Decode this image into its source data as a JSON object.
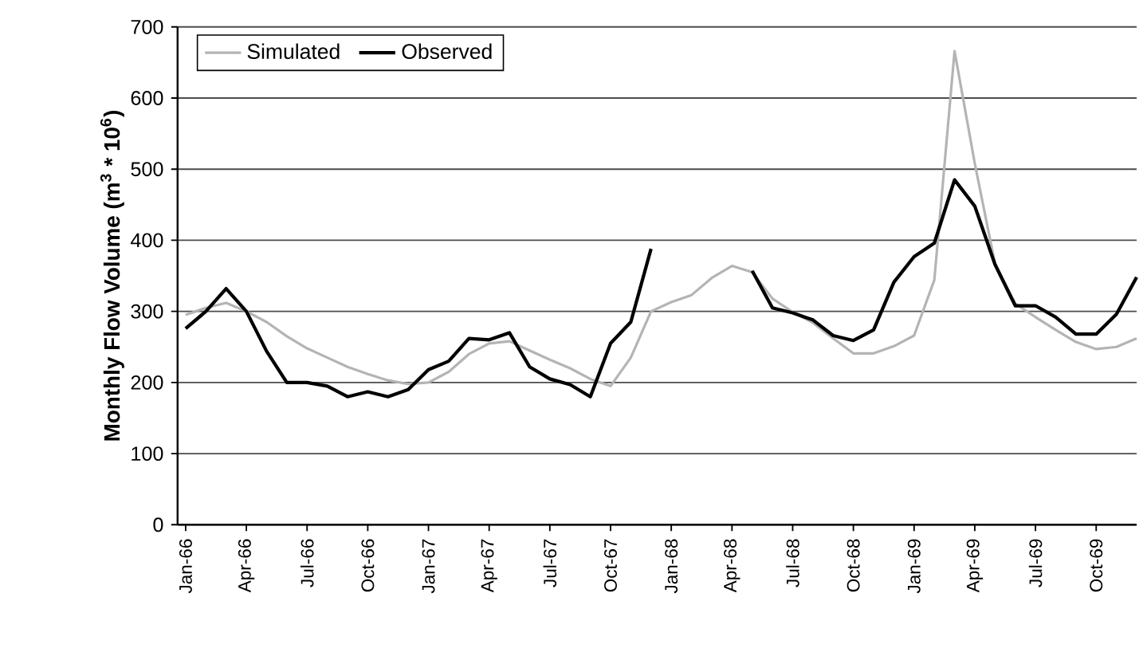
{
  "chart_data": {
    "type": "line",
    "ylabel": "Monthly Flow Volume (m$^{3}$ * 10$^{6}$)",
    "categories": [
      "Jan-66",
      null,
      null,
      "Apr-66",
      null,
      null,
      "Jul-66",
      null,
      null,
      "Oct-66",
      null,
      null,
      "Jan-67",
      null,
      null,
      "Apr-67",
      null,
      null,
      "Jul-67",
      null,
      null,
      "Oct-67",
      null,
      null,
      "Jan-68",
      null,
      null,
      "Apr-68",
      null,
      null,
      "Jul-68",
      null,
      null,
      "Oct-68",
      null,
      null,
      "Jan-69",
      null,
      null,
      "Apr-69",
      null,
      null,
      "Jul-69",
      null,
      null,
      "Oct-69",
      null,
      null
    ],
    "series": [
      {
        "name": "Simulated",
        "color": "#b4b4b4",
        "values": [
          295,
          305,
          312,
          300,
          285,
          265,
          248,
          235,
          222,
          212,
          203,
          198,
          200,
          215,
          240,
          255,
          258,
          245,
          232,
          220,
          205,
          195,
          235,
          300,
          313,
          323,
          347,
          364,
          355,
          318,
          299,
          284,
          262,
          241,
          241,
          251,
          266,
          344,
          666,
          508,
          367,
          311,
          292,
          274,
          257,
          247,
          250,
          262
        ]
      },
      {
        "name": "Observed",
        "color": "#000000",
        "values": [
          276,
          300,
          332,
          300,
          244,
          200,
          200,
          195,
          180,
          187,
          180,
          190,
          218,
          230,
          262,
          260,
          270,
          222,
          205,
          197,
          180,
          255,
          285,
          388,
          null,
          null,
          null,
          null,
          357,
          305,
          298,
          288,
          266,
          259,
          274,
          341,
          377,
          396,
          485,
          448,
          366,
          308,
          308,
          292,
          268,
          268,
          296,
          348
        ]
      }
    ],
    "ylim": [
      0,
      700
    ],
    "yticks": [
      0,
      100,
      200,
      300,
      400,
      500,
      600,
      700
    ],
    "grid": "y",
    "legend": "top left",
    "line_style": "solid",
    "marker": "none"
  }
}
